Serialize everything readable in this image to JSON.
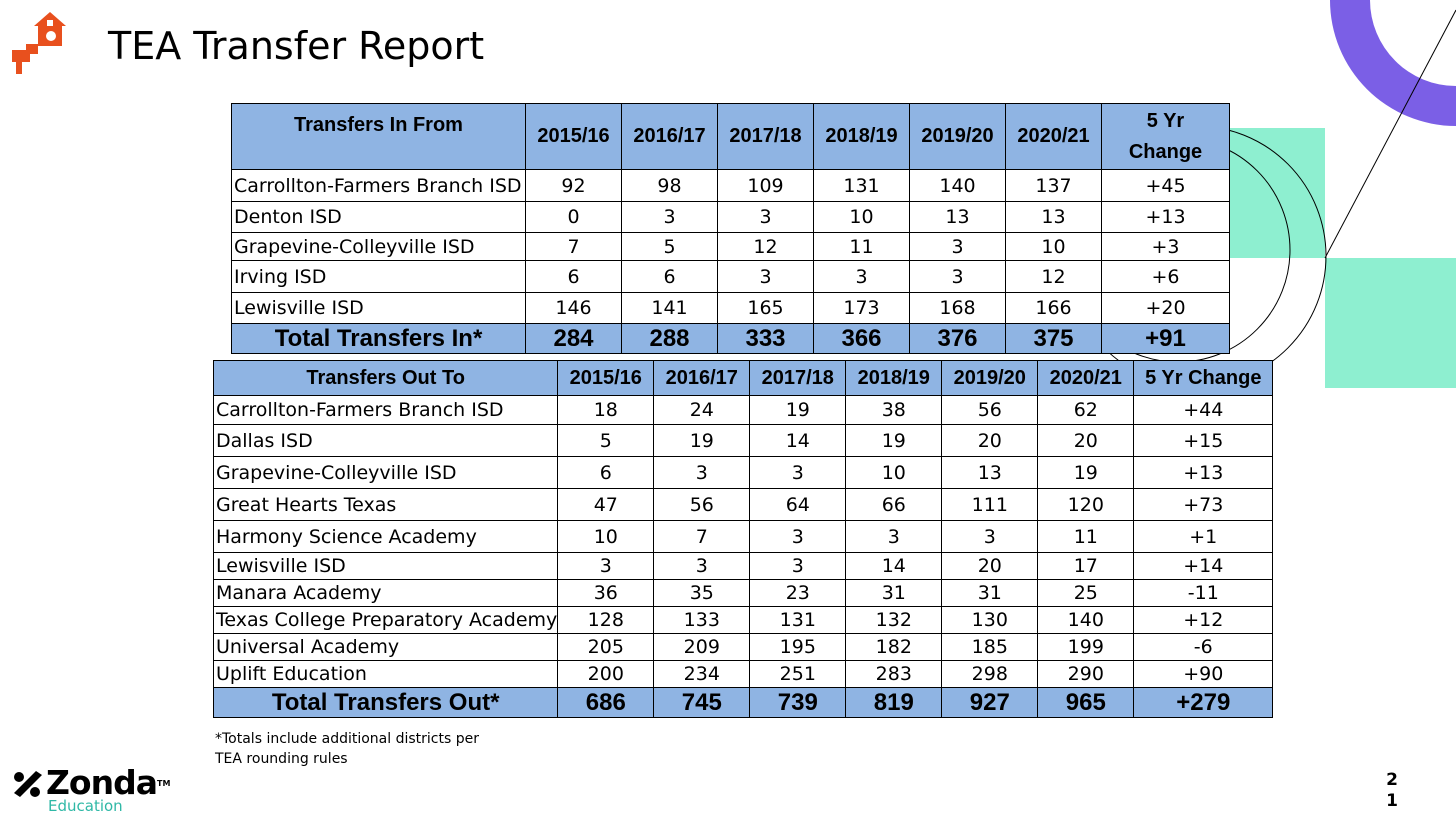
{
  "slide": {
    "title": "TEA Transfer Report",
    "footnote_line1": "*Totals include additional districts per",
    "footnote_line2": "TEA  rounding rules",
    "page_number_line1": "2",
    "page_number_line2": "1"
  },
  "brand": {
    "name": "Zonda",
    "trademark": "TM",
    "sub": "Education",
    "accent_color": "#2fb8a6"
  },
  "colors": {
    "header_fill": "#8fb4e3",
    "logo_orange": "#e8501e",
    "deco_purple": "#7b5fe6",
    "deco_mint": "#8eefd0"
  },
  "transfers_in": {
    "header": {
      "label": "Transfers In From",
      "years": [
        "2015/16",
        "2016/17",
        "2017/18",
        "2018/19",
        "2019/20",
        "2020/21"
      ],
      "change_line1": "5 Yr",
      "change_line2": "Change"
    },
    "rows": [
      {
        "name": "Carrollton-Farmers Branch ISD",
        "values": [
          "92",
          "98",
          "109",
          "131",
          "140",
          "137"
        ],
        "change": "+45"
      },
      {
        "name": "Denton ISD",
        "values": [
          "0",
          "3",
          "3",
          "10",
          "13",
          "13"
        ],
        "change": "+13"
      },
      {
        "name": "Grapevine-Colleyville ISD",
        "values": [
          "7",
          "5",
          "12",
          "11",
          "3",
          "10"
        ],
        "change": "+3"
      },
      {
        "name": "Irving ISD",
        "values": [
          "6",
          "6",
          "3",
          "3",
          "3",
          "12"
        ],
        "change": "+6"
      },
      {
        "name": "Lewisville ISD",
        "values": [
          "146",
          "141",
          "165",
          "173",
          "168",
          "166"
        ],
        "change": "+20"
      }
    ],
    "total": {
      "label": "Total Transfers In*",
      "values": [
        "284",
        "288",
        "333",
        "366",
        "376",
        "375"
      ],
      "change": "+91"
    }
  },
  "transfers_out": {
    "header": {
      "label": "Transfers Out To",
      "years": [
        "2015/16",
        "2016/17",
        "2017/18",
        "2018/19",
        "2019/20",
        "2020/21"
      ],
      "change": "5 Yr Change"
    },
    "rows": [
      {
        "name": "Carrollton-Farmers Branch ISD",
        "values": [
          "18",
          "24",
          "19",
          "38",
          "56",
          "62"
        ],
        "change": "+44"
      },
      {
        "name": "Dallas ISD",
        "values": [
          "5",
          "19",
          "14",
          "19",
          "20",
          "20"
        ],
        "change": "+15"
      },
      {
        "name": "Grapevine-Colleyville ISD",
        "values": [
          "6",
          "3",
          "3",
          "10",
          "13",
          "19"
        ],
        "change": "+13"
      },
      {
        "name": "Great Hearts Texas",
        "values": [
          "47",
          "56",
          "64",
          "66",
          "111",
          "120"
        ],
        "change": "+73"
      },
      {
        "name": "Harmony Science Academy",
        "values": [
          "10",
          "7",
          "3",
          "3",
          "3",
          "11"
        ],
        "change": "+1"
      },
      {
        "name": "Lewisville ISD",
        "values": [
          "3",
          "3",
          "3",
          "14",
          "20",
          "17"
        ],
        "change": "+14"
      },
      {
        "name": "Manara Academy",
        "values": [
          "36",
          "35",
          "23",
          "31",
          "31",
          "25"
        ],
        "change": "-11"
      },
      {
        "name": "Texas College Preparatory Academy",
        "values": [
          "128",
          "133",
          "131",
          "132",
          "130",
          "140"
        ],
        "change": "+12"
      },
      {
        "name": "Universal Academy",
        "values": [
          "205",
          "209",
          "195",
          "182",
          "185",
          "199"
        ],
        "change": "-6"
      },
      {
        "name": "Uplift Education",
        "values": [
          "200",
          "234",
          "251",
          "283",
          "298",
          "290"
        ],
        "change": "+90"
      }
    ],
    "total": {
      "label": "Total Transfers Out*",
      "values": [
        "686",
        "745",
        "739",
        "819",
        "927",
        "965"
      ],
      "change": "+279"
    }
  }
}
